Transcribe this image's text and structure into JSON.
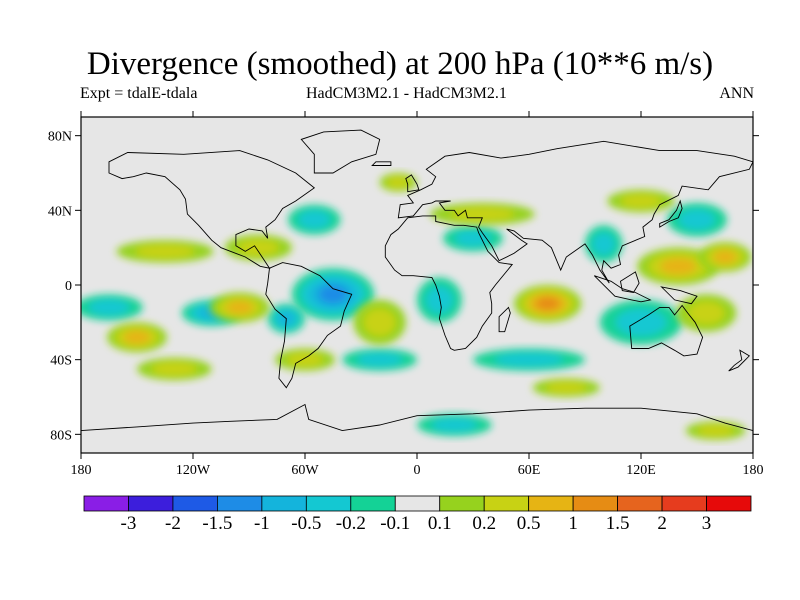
{
  "chart_data": {
    "type": "heatmap",
    "title": "Divergence (smoothed) at 200 hPa (10**6 m/s)",
    "experiment": "Expt = tdalE-tdala",
    "model": "HadCM3M2.1 - HadCM3M2.1",
    "period": "ANN",
    "xlim": [
      -180,
      180
    ],
    "ylim": [
      -90,
      90
    ],
    "x_ticks": [
      {
        "value": -180,
        "label": "180"
      },
      {
        "value": -120,
        "label": "120W"
      },
      {
        "value": -60,
        "label": "60W"
      },
      {
        "value": 0,
        "label": "0"
      },
      {
        "value": 60,
        "label": "60E"
      },
      {
        "value": 120,
        "label": "120E"
      },
      {
        "value": 180,
        "label": "180"
      }
    ],
    "y_ticks": [
      {
        "value": 80,
        "label": "80N"
      },
      {
        "value": 40,
        "label": "40N"
      },
      {
        "value": 0,
        "label": "0"
      },
      {
        "value": -40,
        "label": "40S"
      },
      {
        "value": -80,
        "label": "80S"
      }
    ],
    "colorbar": {
      "levels": [
        "-3",
        "-2",
        "-1.5",
        "-1",
        "-0.5",
        "-0.2",
        "-0.1",
        "0.1",
        "0.2",
        "0.5",
        "1",
        "1.5",
        "2",
        "3"
      ],
      "colors": [
        "#8a1ee6",
        "#3c1edc",
        "#1e5ae6",
        "#1e8ce6",
        "#14b4dc",
        "#14c8d2",
        "#14d296",
        "#e6e6e6",
        "#96d21e",
        "#c8d214",
        "#e6b414",
        "#e68c14",
        "#e6641e",
        "#e63c1e",
        "#e60a0a"
      ]
    },
    "features": [
      {
        "lon": -45,
        "lat": -5,
        "value": -1.2,
        "extent": [
          22,
          14
        ]
      },
      {
        "lon": 12,
        "lat": -8,
        "value": -0.4,
        "extent": [
          12,
          12
        ]
      },
      {
        "lon": -20,
        "lat": -40,
        "value": -0.4,
        "extent": [
          20,
          6
        ]
      },
      {
        "lon": -165,
        "lat": -12,
        "value": -0.4,
        "extent": [
          18,
          7
        ]
      },
      {
        "lon": -110,
        "lat": -15,
        "value": -0.5,
        "extent": [
          16,
          7
        ]
      },
      {
        "lon": -70,
        "lat": -18,
        "value": -0.6,
        "extent": [
          10,
          8
        ]
      },
      {
        "lon": 30,
        "lat": 25,
        "value": -0.4,
        "extent": [
          16,
          7
        ]
      },
      {
        "lon": 100,
        "lat": 22,
        "value": -0.4,
        "extent": [
          10,
          10
        ]
      },
      {
        "lon": 60,
        "lat": -40,
        "value": -0.4,
        "extent": [
          30,
          6
        ]
      },
      {
        "lon": 150,
        "lat": 35,
        "value": -0.4,
        "extent": [
          16,
          9
        ]
      },
      {
        "lon": 20,
        "lat": -75,
        "value": -0.3,
        "extent": [
          20,
          6
        ]
      },
      {
        "lon": -55,
        "lat": 35,
        "value": -0.3,
        "extent": [
          14,
          8
        ]
      },
      {
        "lon": 120,
        "lat": -20,
        "value": -0.2,
        "extent": [
          22,
          12
        ]
      },
      {
        "lon": -150,
        "lat": -28,
        "value": 0.7,
        "extent": [
          16,
          8
        ]
      },
      {
        "lon": -135,
        "lat": 18,
        "value": 0.3,
        "extent": [
          26,
          6
        ]
      },
      {
        "lon": -95,
        "lat": -12,
        "value": 0.5,
        "extent": [
          16,
          8
        ]
      },
      {
        "lon": -85,
        "lat": 20,
        "value": 0.4,
        "extent": [
          18,
          7
        ]
      },
      {
        "lon": 70,
        "lat": -10,
        "value": 1.1,
        "extent": [
          18,
          10
        ]
      },
      {
        "lon": 35,
        "lat": 38,
        "value": 0.3,
        "extent": [
          28,
          6
        ]
      },
      {
        "lon": -20,
        "lat": -20,
        "value": 0.4,
        "extent": [
          14,
          12
        ]
      },
      {
        "lon": 140,
        "lat": 10,
        "value": 0.6,
        "extent": [
          22,
          10
        ]
      },
      {
        "lon": 165,
        "lat": 15,
        "value": 0.5,
        "extent": [
          14,
          8
        ]
      },
      {
        "lon": 155,
        "lat": -15,
        "value": 0.4,
        "extent": [
          16,
          10
        ]
      },
      {
        "lon": 80,
        "lat": -55,
        "value": 0.4,
        "extent": [
          18,
          5
        ]
      },
      {
        "lon": -130,
        "lat": -45,
        "value": 0.3,
        "extent": [
          20,
          6
        ]
      },
      {
        "lon": -60,
        "lat": -40,
        "value": 0.4,
        "extent": [
          16,
          6
        ]
      },
      {
        "lon": 160,
        "lat": -78,
        "value": 0.4,
        "extent": [
          16,
          5
        ]
      },
      {
        "lon": 120,
        "lat": 45,
        "value": 0.2,
        "extent": [
          18,
          6
        ]
      },
      {
        "lon": -10,
        "lat": 55,
        "value": 0.2,
        "extent": [
          10,
          5
        ]
      }
    ]
  }
}
